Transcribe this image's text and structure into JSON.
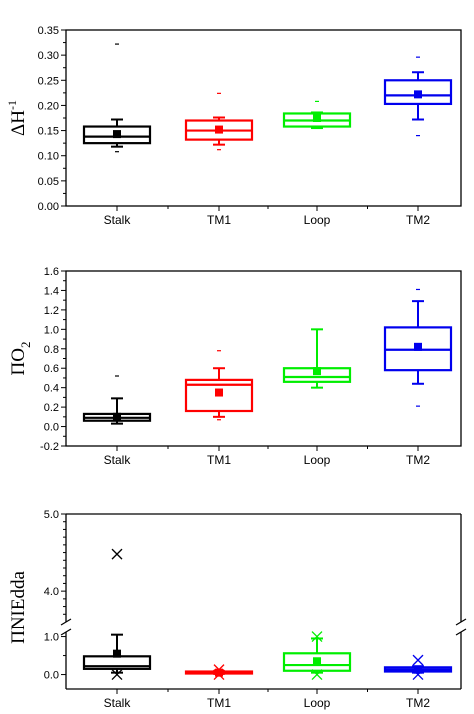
{
  "chart_data": [
    {
      "type": "box",
      "ylabel": "ΔH",
      "ylabel_superscript": "-1",
      "ylim": [
        0.0,
        0.35
      ],
      "yticks": [
        "0.00",
        "0.05",
        "0.10",
        "0.15",
        "0.20",
        "0.25",
        "0.30",
        "0.35"
      ],
      "categories": [
        "Stalk",
        "TM1",
        "Loop",
        "TM2"
      ],
      "series": [
        {
          "category": "Stalk",
          "color": "#000000",
          "whisker_low": 0.118,
          "q1": 0.125,
          "median": 0.138,
          "q3": 0.158,
          "whisker_high": 0.172,
          "mean": 0.143,
          "outliers": [
            0.322,
            0.108
          ]
        },
        {
          "category": "TM1",
          "color": "#ff0000",
          "whisker_low": 0.122,
          "q1": 0.132,
          "median": 0.15,
          "q3": 0.17,
          "whisker_high": 0.176,
          "mean": 0.152,
          "outliers": [
            0.224,
            0.112
          ]
        },
        {
          "category": "Loop",
          "color": "#00ee00",
          "whisker_low": 0.155,
          "q1": 0.158,
          "median": 0.17,
          "q3": 0.184,
          "whisker_high": 0.186,
          "mean": 0.175,
          "outliers": [
            0.208
          ]
        },
        {
          "category": "TM2",
          "color": "#0000ee",
          "whisker_low": 0.172,
          "q1": 0.203,
          "median": 0.22,
          "q3": 0.25,
          "whisker_high": 0.266,
          "mean": 0.222,
          "outliers": [
            0.296,
            0.14
          ]
        }
      ]
    },
    {
      "type": "box",
      "ylabel": "ΠO",
      "ylabel_subscript": "2",
      "ylim": [
        -0.2,
        1.6
      ],
      "yticks": [
        "-0.2",
        "0.0",
        "0.2",
        "0.4",
        "0.6",
        "0.8",
        "1.0",
        "1.2",
        "1.4",
        "1.6"
      ],
      "categories": [
        "Stalk",
        "TM1",
        "Loop",
        "TM2"
      ],
      "series": [
        {
          "category": "Stalk",
          "color": "#000000",
          "whisker_low": 0.03,
          "q1": 0.06,
          "median": 0.09,
          "q3": 0.13,
          "whisker_high": 0.29,
          "mean": 0.1,
          "outliers": [
            0.52
          ]
        },
        {
          "category": "TM1",
          "color": "#ff0000",
          "whisker_low": 0.1,
          "q1": 0.16,
          "median": 0.43,
          "q3": 0.48,
          "whisker_high": 0.6,
          "mean": 0.35,
          "outliers": [
            0.78,
            0.07
          ]
        },
        {
          "category": "Loop",
          "color": "#00ee00",
          "whisker_low": 0.4,
          "q1": 0.46,
          "median": 0.51,
          "q3": 0.6,
          "whisker_high": 1.0,
          "mean": 0.57,
          "outliers": []
        },
        {
          "category": "TM2",
          "color": "#0000ee",
          "whisker_low": 0.44,
          "q1": 0.58,
          "median": 0.79,
          "q3": 1.02,
          "whisker_high": 1.29,
          "mean": 0.82,
          "outliers": [
            1.41,
            0.21
          ]
        }
      ]
    },
    {
      "type": "box",
      "ylabel": "ΠNIEdda",
      "broken_axis": true,
      "upper_ylim": [
        3.6,
        5.0
      ],
      "upper_yticks": [
        "4.0",
        "5.0"
      ],
      "lower_ylim": [
        -0.38,
        1.12
      ],
      "lower_yticks": [
        "0.0",
        "1.0"
      ],
      "categories": [
        "Stalk",
        "TM1",
        "Loop",
        "TM2"
      ],
      "series": [
        {
          "category": "Stalk",
          "color": "#000000",
          "whisker_low": 0.05,
          "q1": 0.15,
          "median": 0.22,
          "q3": 0.48,
          "whisker_high": 1.05,
          "mean": 0.55,
          "outliers": [
            4.48,
            0.0
          ]
        },
        {
          "category": "TM1",
          "color": "#ff0000",
          "whisker_low": 0.02,
          "q1": 0.03,
          "median": 0.05,
          "q3": 0.08,
          "whisker_high": 0.09,
          "mean": 0.05,
          "outliers": [
            0.13,
            0.0
          ]
        },
        {
          "category": "Loop",
          "color": "#00ee00",
          "whisker_low": 0.05,
          "q1": 0.1,
          "median": 0.25,
          "q3": 0.56,
          "whisker_high": 0.95,
          "mean": 0.35,
          "outliers": [
            1.0,
            0.0
          ]
        },
        {
          "category": "TM2",
          "color": "#0000ee",
          "whisker_low": 0.05,
          "q1": 0.08,
          "median": 0.13,
          "q3": 0.19,
          "whisker_high": 0.22,
          "mean": 0.13,
          "outliers": [
            0.38,
            0.0
          ]
        }
      ]
    }
  ]
}
